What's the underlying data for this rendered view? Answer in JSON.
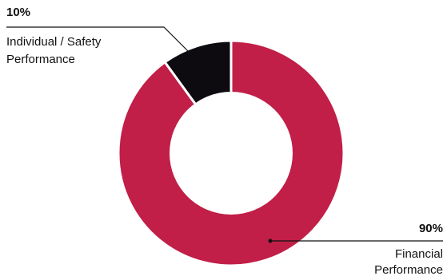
{
  "chart_data": {
    "type": "pie",
    "title": "",
    "donut": true,
    "slices": [
      {
        "label_lines": [
          "Individual / Safety",
          "Performance"
        ],
        "value": 10,
        "value_label": "10%",
        "color": "#0d0b10"
      },
      {
        "label_lines": [
          "Financial",
          "Performance"
        ],
        "value": 90,
        "value_label": "90%",
        "color": "#c11f47"
      }
    ],
    "legend": "none",
    "annotations": "leader lines from slices to labels"
  }
}
